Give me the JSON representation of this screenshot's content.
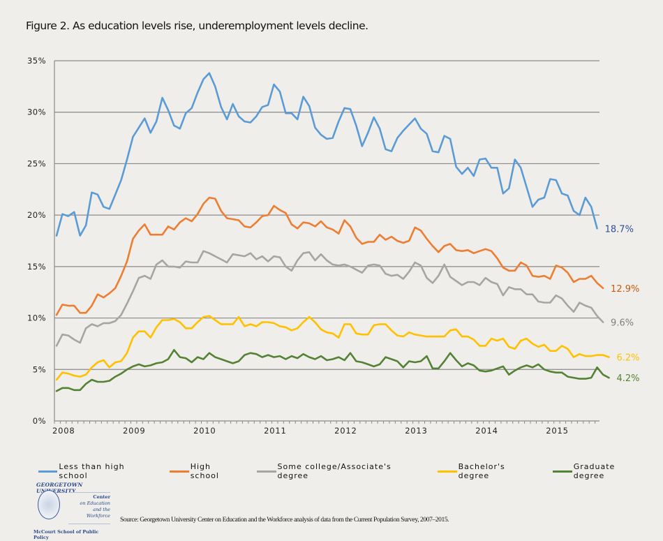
{
  "chart_data": {
    "type": "line",
    "title": "Figure 2. As education levels rise, underemployment levels decline.",
    "xlabel": "",
    "ylabel": "",
    "ylim": [
      0,
      35
    ],
    "y_ticks": [
      "0%",
      "5%",
      "10%",
      "15%",
      "20%",
      "25%",
      "30%",
      "35%"
    ],
    "y_tick_values": [
      0,
      5,
      10,
      15,
      20,
      25,
      30,
      35
    ],
    "x_ticks": [
      "2008",
      "2009",
      "2010",
      "2011",
      "2012",
      "2013",
      "2014",
      "2015"
    ],
    "x_start": "Jan 2008",
    "x_interval": "monthly",
    "grid": true,
    "legend_position": "bottom",
    "series": [
      {
        "name": "Less than high school",
        "color": "#5b9bd5",
        "end_label": "18.7%",
        "end_label_color": "#2f4f8f",
        "values": [
          18.0,
          20.1,
          19.9,
          20.3,
          18.0,
          19.0,
          22.2,
          22.0,
          20.8,
          20.6,
          22.0,
          23.4,
          25.4,
          27.6,
          28.5,
          29.4,
          28.0,
          29.1,
          31.4,
          30.2,
          28.7,
          28.4,
          29.9,
          30.4,
          31.9,
          33.2,
          33.8,
          32.5,
          30.5,
          29.3,
          30.8,
          29.6,
          29.1,
          29.0,
          29.6,
          30.5,
          30.7,
          32.7,
          32.0,
          29.9,
          29.9,
          29.3,
          31.5,
          30.6,
          28.5,
          27.8,
          27.4,
          27.5,
          29.1,
          30.4,
          30.3,
          28.7,
          26.7,
          28.0,
          29.5,
          28.4,
          26.4,
          26.2,
          27.5,
          28.2,
          28.8,
          29.4,
          28.4,
          27.9,
          26.2,
          26.1,
          27.7,
          27.4,
          24.7,
          24.0,
          24.6,
          23.8,
          25.4,
          25.5,
          24.6,
          24.6,
          22.1,
          22.6,
          25.4,
          24.6,
          22.7,
          20.8,
          21.5,
          21.7,
          23.5,
          23.4,
          22.1,
          21.9,
          20.4,
          20.0,
          21.7,
          20.8,
          18.7
        ]
      },
      {
        "name": "High school",
        "color": "#ed7d31",
        "end_label": "12.9%",
        "end_label_color": "#c55a11",
        "values": [
          10.3,
          11.3,
          11.2,
          11.2,
          10.5,
          10.5,
          11.2,
          12.3,
          12.0,
          12.4,
          12.9,
          14.1,
          15.5,
          17.7,
          18.5,
          19.1,
          18.1,
          18.1,
          18.1,
          18.9,
          18.6,
          19.3,
          19.7,
          19.4,
          20.1,
          21.1,
          21.7,
          21.6,
          20.4,
          19.7,
          19.6,
          19.5,
          18.9,
          18.8,
          19.3,
          19.9,
          20.0,
          20.9,
          20.5,
          20.2,
          19.1,
          18.7,
          19.3,
          19.2,
          18.9,
          19.4,
          18.8,
          18.6,
          18.2,
          19.5,
          18.9,
          17.8,
          17.2,
          17.4,
          17.4,
          18.1,
          17.6,
          17.9,
          17.5,
          17.3,
          17.5,
          18.8,
          18.5,
          17.7,
          17.0,
          16.4,
          17.0,
          17.2,
          16.6,
          16.5,
          16.6,
          16.3,
          16.5,
          16.7,
          16.5,
          15.8,
          14.9,
          14.6,
          14.6,
          15.4,
          15.1,
          14.1,
          14.0,
          14.1,
          13.8,
          15.1,
          14.9,
          14.4,
          13.5,
          13.8,
          13.8,
          14.1,
          13.4,
          12.9
        ]
      },
      {
        "name": "Some college/Associate's degree",
        "color": "#a5a5a5",
        "end_label": "9.6%",
        "end_label_color": "#7f7f7f",
        "values": [
          7.3,
          8.4,
          8.3,
          7.9,
          7.6,
          9.0,
          9.4,
          9.2,
          9.5,
          9.5,
          9.7,
          10.3,
          11.4,
          12.6,
          13.9,
          14.1,
          13.8,
          15.2,
          15.6,
          15.0,
          15.0,
          14.9,
          15.5,
          15.4,
          15.4,
          16.5,
          16.3,
          16.0,
          15.7,
          15.4,
          16.2,
          16.1,
          16.0,
          16.3,
          15.7,
          16.0,
          15.5,
          16.0,
          15.9,
          15.0,
          14.6,
          15.6,
          16.3,
          16.4,
          15.6,
          16.2,
          15.6,
          15.2,
          15.1,
          15.2,
          15.0,
          14.7,
          14.4,
          15.1,
          15.2,
          15.1,
          14.3,
          14.1,
          14.2,
          13.8,
          14.5,
          15.4,
          15.1,
          13.9,
          13.4,
          14.1,
          15.2,
          14.0,
          13.6,
          13.2,
          13.5,
          13.5,
          13.2,
          13.9,
          13.5,
          13.3,
          12.2,
          13.0,
          12.8,
          12.8,
          12.3,
          12.3,
          11.6,
          11.5,
          11.5,
          12.2,
          11.9,
          11.2,
          10.6,
          11.5,
          11.2,
          11.0,
          10.2,
          9.6
        ]
      },
      {
        "name": "Bachelor's degree",
        "color": "#ffc000",
        "end_label": "6.2%",
        "end_label_color": "#ffc000",
        "values": [
          4.0,
          4.7,
          4.6,
          4.4,
          4.3,
          4.5,
          5.2,
          5.7,
          5.9,
          5.2,
          5.7,
          5.8,
          6.6,
          8.1,
          8.7,
          8.7,
          8.1,
          9.1,
          9.8,
          9.8,
          9.9,
          9.6,
          9.0,
          9.0,
          9.6,
          10.1,
          10.2,
          9.8,
          9.4,
          9.4,
          9.4,
          10.1,
          9.2,
          9.4,
          9.2,
          9.6,
          9.6,
          9.5,
          9.2,
          9.1,
          8.8,
          9.0,
          9.6,
          10.1,
          9.6,
          8.9,
          8.6,
          8.5,
          8.1,
          9.4,
          9.4,
          8.5,
          8.4,
          8.4,
          9.3,
          9.4,
          9.4,
          8.8,
          8.3,
          8.2,
          8.6,
          8.4,
          8.3,
          8.2,
          8.2,
          8.2,
          8.2,
          8.8,
          8.9,
          8.2,
          8.2,
          7.9,
          7.3,
          7.3,
          8.0,
          7.8,
          8.0,
          7.2,
          7.0,
          7.8,
          8.0,
          7.5,
          7.2,
          7.4,
          6.8,
          6.8,
          7.3,
          7.0,
          6.2,
          6.5,
          6.3,
          6.3,
          6.4,
          6.4,
          6.2
        ]
      },
      {
        "name": "Graduate degree",
        "color": "#548235",
        "end_label": "4.2%",
        "end_label_color": "#548235",
        "values": [
          2.9,
          3.2,
          3.2,
          3.0,
          3.0,
          3.6,
          4.0,
          3.8,
          3.8,
          3.9,
          4.3,
          4.6,
          5.0,
          5.3,
          5.5,
          5.3,
          5.4,
          5.6,
          5.7,
          6.0,
          6.9,
          6.2,
          6.1,
          5.7,
          6.2,
          6.0,
          6.6,
          6.2,
          6.0,
          5.8,
          5.6,
          5.8,
          6.4,
          6.6,
          6.5,
          6.2,
          6.4,
          6.2,
          6.3,
          6.0,
          6.3,
          6.1,
          6.5,
          6.2,
          6.0,
          6.3,
          5.9,
          6.0,
          6.2,
          5.9,
          6.6,
          5.8,
          5.7,
          5.5,
          5.3,
          5.5,
          6.2,
          6.0,
          5.8,
          5.2,
          5.8,
          5.7,
          5.8,
          6.3,
          5.1,
          5.1,
          5.8,
          6.6,
          5.9,
          5.3,
          5.6,
          5.4,
          4.9,
          4.8,
          4.9,
          5.1,
          5.3,
          4.5,
          4.9,
          5.2,
          5.4,
          5.2,
          5.5,
          5.0,
          4.8,
          4.7,
          4.7,
          4.3,
          4.2,
          4.1,
          4.1,
          4.2,
          5.2,
          4.5,
          4.2
        ]
      }
    ]
  },
  "legend": [
    {
      "label": "Less than high school",
      "color": "#5b9bd5"
    },
    {
      "label": "High school",
      "color": "#ed7d31"
    },
    {
      "label": "Some college/Associate's degree",
      "color": "#a5a5a5"
    },
    {
      "label": "Bachelor's degree",
      "color": "#ffc000"
    },
    {
      "label": "Graduate degree",
      "color": "#548235"
    }
  ],
  "logo": {
    "university": "GEORGETOWN UNIVERSITY",
    "center_line1": "Center",
    "center_line2": "on Education",
    "center_line3": "and the Workforce",
    "school": "McCourt School of Public Policy"
  },
  "source": "Source: Georgetown University Center on Education and the Workforce analysis of data from the Current Population Survey, 2007–2015."
}
